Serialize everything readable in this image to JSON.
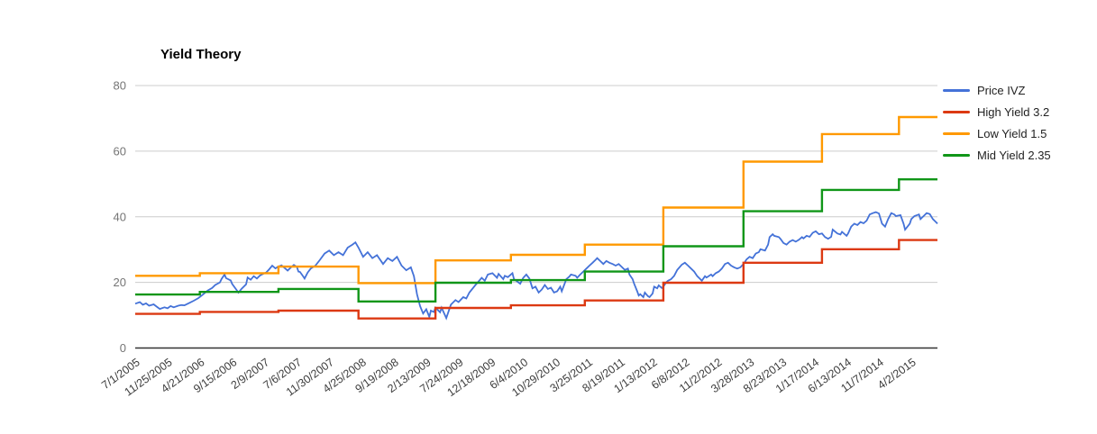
{
  "title": "Yield Theory",
  "legend": {
    "position": "right",
    "items": [
      {
        "label": "Price IVZ",
        "color": "#4472d8"
      },
      {
        "label": "High Yield 3.2",
        "color": "#dc3912"
      },
      {
        "label": "Low Yield 1.5",
        "color": "#ff9900"
      },
      {
        "label": "Mid Yield 2.35",
        "color": "#109618"
      }
    ]
  },
  "colors": {
    "grid": "#cccccc",
    "baseline": "#333333",
    "y_tick_text": "#757575",
    "x_tick_text": "#3c3c3c",
    "title_text": "#000000",
    "background": "#ffffff"
  },
  "chart_data": {
    "type": "line",
    "title": "Yield Theory",
    "xlabel": "",
    "ylabel": "",
    "grid": "horizontal",
    "legend_position": "right",
    "ylim": [
      0,
      80
    ],
    "yticks": [
      0,
      20,
      40,
      60,
      80
    ],
    "x_unit": "weeks since 7/1/2005",
    "x_range_weeks": [
      0,
      521
    ],
    "x_tick_interval_weeks": 21,
    "x_tick_labels": [
      "7/1/2005",
      "11/25/2005",
      "4/21/2006",
      "9/15/2006",
      "2/9/2007",
      "7/6/2007",
      "11/30/2007",
      "4/25/2008",
      "9/19/2008",
      "2/13/2009",
      "7/24/2009",
      "12/18/2009",
      "6/4/2010",
      "10/29/2010",
      "3/25/2011",
      "8/19/2011",
      "1/13/2012",
      "6/8/2012",
      "11/2/2012",
      "3/28/2013",
      "8/23/2013",
      "1/17/2014",
      "6/13/2014",
      "11/7/2014",
      "4/2/2015"
    ],
    "series": [
      {
        "name": "Price IVZ",
        "color": "#4472d8",
        "style": "line",
        "points": [
          [
            0,
            13.5
          ],
          [
            3,
            14.0
          ],
          [
            5,
            13.2
          ],
          [
            7,
            13.6
          ],
          [
            9,
            12.9
          ],
          [
            12,
            13.3
          ],
          [
            14,
            12.6
          ],
          [
            16,
            11.9
          ],
          [
            19,
            12.4
          ],
          [
            21,
            12.1
          ],
          [
            23,
            12.8
          ],
          [
            25,
            12.4
          ],
          [
            28,
            12.9
          ],
          [
            30,
            13.1
          ],
          [
            32,
            13.0
          ],
          [
            35,
            13.7
          ],
          [
            38,
            14.4
          ],
          [
            41,
            15.2
          ],
          [
            44,
            16.3
          ],
          [
            47,
            17.5
          ],
          [
            50,
            18.3
          ],
          [
            52,
            19.2
          ],
          [
            55,
            20.0
          ],
          [
            56,
            21.0
          ],
          [
            58,
            22.4
          ],
          [
            59,
            21.3
          ],
          [
            62,
            20.6
          ],
          [
            63,
            19.5
          ],
          [
            66,
            17.6
          ],
          [
            67,
            16.9
          ],
          [
            69,
            18.0
          ],
          [
            72,
            19.4
          ],
          [
            73,
            21.5
          ],
          [
            75,
            20.8
          ],
          [
            77,
            21.9
          ],
          [
            79,
            21.2
          ],
          [
            81,
            22.1
          ],
          [
            83,
            22.6
          ],
          [
            85,
            23.0
          ],
          [
            87,
            24.0
          ],
          [
            89,
            25.1
          ],
          [
            91,
            24.3
          ],
          [
            93,
            24.8
          ],
          [
            95,
            25.2
          ],
          [
            97,
            24.4
          ],
          [
            99,
            23.6
          ],
          [
            101,
            24.5
          ],
          [
            103,
            25.3
          ],
          [
            105,
            24.7
          ],
          [
            106,
            23.3
          ],
          [
            107,
            23.2
          ],
          [
            109,
            21.9
          ],
          [
            110,
            21.2
          ],
          [
            112,
            23.0
          ],
          [
            114,
            24.2
          ],
          [
            117,
            25.1
          ],
          [
            120,
            26.9
          ],
          [
            123,
            28.8
          ],
          [
            126,
            29.7
          ],
          [
            129,
            28.3
          ],
          [
            132,
            29.2
          ],
          [
            135,
            28.3
          ],
          [
            138,
            30.6
          ],
          [
            141,
            31.5
          ],
          [
            143,
            32.2
          ],
          [
            145,
            30.6
          ],
          [
            148,
            27.8
          ],
          [
            151,
            29.2
          ],
          [
            154,
            27.4
          ],
          [
            157,
            28.3
          ],
          [
            161,
            25.6
          ],
          [
            164,
            27.4
          ],
          [
            167,
            26.5
          ],
          [
            170,
            27.8
          ],
          [
            173,
            25.1
          ],
          [
            176,
            23.7
          ],
          [
            179,
            24.6
          ],
          [
            181,
            21.9
          ],
          [
            183,
            16.4
          ],
          [
            185,
            12.8
          ],
          [
            187,
            10.5
          ],
          [
            189,
            11.8
          ],
          [
            191,
            9.5
          ],
          [
            192,
            11.4
          ],
          [
            194,
            11.0
          ],
          [
            195,
            12.3
          ],
          [
            198,
            10.9
          ],
          [
            199,
            12.3
          ],
          [
            202,
            9.1
          ],
          [
            205,
            13.2
          ],
          [
            208,
            14.6
          ],
          [
            210,
            14.0
          ],
          [
            213,
            15.5
          ],
          [
            215,
            15.1
          ],
          [
            217,
            16.9
          ],
          [
            221,
            19.2
          ],
          [
            225,
            21.4
          ],
          [
            227,
            20.5
          ],
          [
            229,
            22.4
          ],
          [
            232,
            22.8
          ],
          [
            235,
            21.4
          ],
          [
            236,
            22.6
          ],
          [
            239,
            21.0
          ],
          [
            240,
            22.0
          ],
          [
            242,
            21.6
          ],
          [
            245,
            22.8
          ],
          [
            246,
            21.0
          ],
          [
            250,
            19.6
          ],
          [
            252,
            21.4
          ],
          [
            254,
            22.4
          ],
          [
            256,
            21.2
          ],
          [
            258,
            18.2
          ],
          [
            260,
            18.7
          ],
          [
            262,
            16.9
          ],
          [
            264,
            17.8
          ],
          [
            266,
            19.2
          ],
          [
            268,
            18.0
          ],
          [
            270,
            18.4
          ],
          [
            272,
            16.9
          ],
          [
            274,
            17.3
          ],
          [
            276,
            18.7
          ],
          [
            277,
            17.3
          ],
          [
            280,
            21.0
          ],
          [
            282,
            21.8
          ],
          [
            283,
            22.4
          ],
          [
            286,
            22.0
          ],
          [
            287,
            21.4
          ],
          [
            289,
            22.4
          ],
          [
            291,
            23.3
          ],
          [
            293,
            24.2
          ],
          [
            295,
            25.1
          ],
          [
            297,
            26.0
          ],
          [
            299,
            26.9
          ],
          [
            300,
            27.4
          ],
          [
            302,
            26.5
          ],
          [
            304,
            25.6
          ],
          [
            306,
            26.5
          ],
          [
            308,
            26.0
          ],
          [
            310,
            25.6
          ],
          [
            312,
            25.1
          ],
          [
            314,
            25.6
          ],
          [
            316,
            24.7
          ],
          [
            318,
            23.8
          ],
          [
            320,
            24.2
          ],
          [
            321,
            22.4
          ],
          [
            323,
            21.0
          ],
          [
            324,
            19.6
          ],
          [
            326,
            17.3
          ],
          [
            327,
            16.0
          ],
          [
            328,
            16.4
          ],
          [
            330,
            15.5
          ],
          [
            331,
            16.9
          ],
          [
            333,
            15.8
          ],
          [
            334,
            15.5
          ],
          [
            336,
            16.6
          ],
          [
            337,
            18.7
          ],
          [
            339,
            18.2
          ],
          [
            340,
            19.1
          ],
          [
            342,
            18.3
          ],
          [
            343,
            18.7
          ],
          [
            345,
            20.1
          ],
          [
            346,
            20.5
          ],
          [
            348,
            21.0
          ],
          [
            350,
            22.0
          ],
          [
            352,
            23.8
          ],
          [
            355,
            25.4
          ],
          [
            357,
            26.0
          ],
          [
            359,
            25.1
          ],
          [
            361,
            24.2
          ],
          [
            363,
            23.3
          ],
          [
            365,
            21.9
          ],
          [
            367,
            21.0
          ],
          [
            368,
            20.5
          ],
          [
            370,
            21.9
          ],
          [
            371,
            21.5
          ],
          [
            374,
            22.4
          ],
          [
            375,
            21.9
          ],
          [
            377,
            22.8
          ],
          [
            379,
            23.3
          ],
          [
            381,
            24.2
          ],
          [
            383,
            25.6
          ],
          [
            385,
            26.0
          ],
          [
            387,
            25.1
          ],
          [
            389,
            24.6
          ],
          [
            391,
            24.2
          ],
          [
            393,
            24.6
          ],
          [
            395,
            25.6
          ],
          [
            397,
            27.0
          ],
          [
            399,
            27.8
          ],
          [
            401,
            27.4
          ],
          [
            403,
            28.8
          ],
          [
            405,
            29.2
          ],
          [
            406,
            30.1
          ],
          [
            409,
            29.7
          ],
          [
            411,
            31.5
          ],
          [
            412,
            33.8
          ],
          [
            414,
            34.7
          ],
          [
            415,
            34.2
          ],
          [
            418,
            33.8
          ],
          [
            419,
            33.3
          ],
          [
            421,
            32.0
          ],
          [
            423,
            31.5
          ],
          [
            425,
            32.4
          ],
          [
            427,
            32.9
          ],
          [
            429,
            32.4
          ],
          [
            431,
            33.0
          ],
          [
            433,
            33.8
          ],
          [
            434,
            33.4
          ],
          [
            436,
            34.2
          ],
          [
            438,
            33.9
          ],
          [
            440,
            35.1
          ],
          [
            442,
            35.6
          ],
          [
            444,
            34.7
          ],
          [
            446,
            34.9
          ],
          [
            448,
            33.8
          ],
          [
            450,
            33.3
          ],
          [
            452,
            33.9
          ],
          [
            453,
            36.1
          ],
          [
            456,
            34.9
          ],
          [
            458,
            34.6
          ],
          [
            459,
            35.4
          ],
          [
            462,
            34.2
          ],
          [
            463,
            34.9
          ],
          [
            465,
            37.0
          ],
          [
            467,
            37.9
          ],
          [
            469,
            37.5
          ],
          [
            471,
            38.4
          ],
          [
            473,
            38.0
          ],
          [
            475,
            38.8
          ],
          [
            477,
            40.7
          ],
          [
            479,
            41.1
          ],
          [
            481,
            41.4
          ],
          [
            483,
            41.0
          ],
          [
            485,
            37.9
          ],
          [
            487,
            37.0
          ],
          [
            489,
            39.3
          ],
          [
            491,
            41.1
          ],
          [
            493,
            40.7
          ],
          [
            494,
            40.2
          ],
          [
            497,
            40.5
          ],
          [
            499,
            37.9
          ],
          [
            500,
            36.1
          ],
          [
            503,
            37.9
          ],
          [
            504,
            39.3
          ],
          [
            506,
            40.2
          ],
          [
            509,
            40.7
          ],
          [
            510,
            39.3
          ],
          [
            512,
            40.2
          ],
          [
            514,
            41.1
          ],
          [
            516,
            40.8
          ],
          [
            518,
            39.3
          ],
          [
            520,
            38.4
          ],
          [
            521,
            37.9
          ]
        ]
      },
      {
        "name": "High Yield 3.2",
        "color": "#dc3912",
        "style": "step",
        "break_weeks": [
          0,
          42,
          93,
          145,
          195,
          244,
          292,
          343,
          395,
          446,
          496
        ],
        "values": [
          10.4,
          11.0,
          11.4,
          9.0,
          12.2,
          13.0,
          14.5,
          19.9,
          26.0,
          30.1,
          32.9
        ]
      },
      {
        "name": "Low Yield 1.5",
        "color": "#ff9900",
        "style": "step",
        "break_weeks": [
          0,
          42,
          93,
          145,
          195,
          244,
          292,
          343,
          395,
          446,
          496
        ],
        "values": [
          22.0,
          22.8,
          24.8,
          19.8,
          26.7,
          28.4,
          31.5,
          42.8,
          56.8,
          65.2,
          70.4
        ]
      },
      {
        "name": "Mid Yield 2.35",
        "color": "#109618",
        "style": "step",
        "break_weeks": [
          0,
          42,
          93,
          145,
          195,
          244,
          292,
          343,
          395,
          446,
          496
        ],
        "values": [
          16.3,
          17.1,
          18.0,
          14.2,
          19.9,
          20.7,
          23.3,
          31.0,
          41.7,
          48.2,
          51.4
        ]
      }
    ]
  }
}
